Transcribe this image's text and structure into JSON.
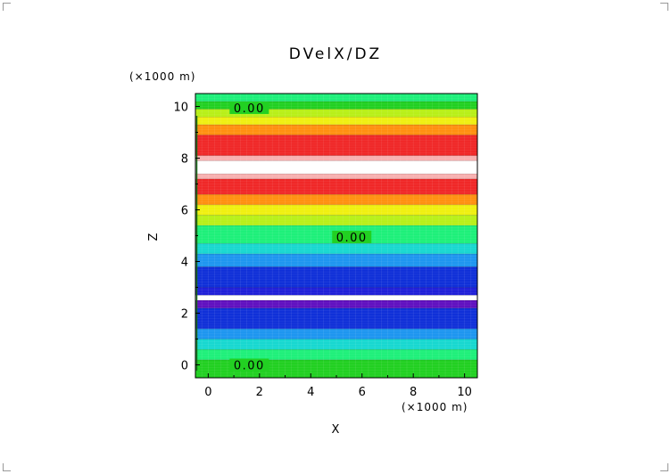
{
  "chart_data": {
    "type": "heatmap",
    "title": "DVelX/DZ",
    "xlabel": "X",
    "ylabel": "Z",
    "x_unit_label": "(×1000 m)",
    "y_unit_label": "(×1000 m)",
    "xlim": [
      -0.5,
      10.5
    ],
    "ylim": [
      -0.5,
      10.5
    ],
    "x_ticks": [
      "0",
      "2",
      "4",
      "6",
      "8",
      "10"
    ],
    "y_ticks": [
      "0",
      "2",
      "4",
      "6",
      "8",
      "10"
    ],
    "x_tick_values": [
      0,
      2,
      4,
      6,
      8,
      10
    ],
    "y_tick_values": [
      0,
      2,
      4,
      6,
      8,
      10
    ],
    "pattern": "horizontal bands, varying only with Z",
    "bands": [
      {
        "z0": -0.5,
        "z1": 0.2,
        "color": "#22d022"
      },
      {
        "z0": 0.2,
        "z1": 0.6,
        "color": "#1ef07a"
      },
      {
        "z0": 0.6,
        "z1": 1.0,
        "color": "#18d8d0"
      },
      {
        "z0": 1.0,
        "z1": 1.4,
        "color": "#1e96f0"
      },
      {
        "z0": 1.4,
        "z1": 2.2,
        "color": "#1030d8"
      },
      {
        "z0": 2.2,
        "z1": 2.5,
        "color": "#6010c0"
      },
      {
        "z0": 2.5,
        "z1": 2.7,
        "color": "#ffffff"
      },
      {
        "z0": 2.7,
        "z1": 3.0,
        "color": "#2020d8"
      },
      {
        "z0": 3.0,
        "z1": 3.8,
        "color": "#1030d8"
      },
      {
        "z0": 3.8,
        "z1": 4.3,
        "color": "#1e96f0"
      },
      {
        "z0": 4.3,
        "z1": 4.7,
        "color": "#18d8d0"
      },
      {
        "z0": 4.7,
        "z1": 5.4,
        "color": "#1ef07a"
      },
      {
        "z0": 5.4,
        "z1": 5.8,
        "color": "#b8f018"
      },
      {
        "z0": 5.8,
        "z1": 6.2,
        "color": "#f0f010"
      },
      {
        "z0": 6.2,
        "z1": 6.6,
        "color": "#ff9010"
      },
      {
        "z0": 6.6,
        "z1": 7.2,
        "color": "#f02828"
      },
      {
        "z0": 7.2,
        "z1": 7.4,
        "color": "#f8b0b0"
      },
      {
        "z0": 7.4,
        "z1": 7.9,
        "color": "#ffffff"
      },
      {
        "z0": 7.9,
        "z1": 8.1,
        "color": "#f8b0b0"
      },
      {
        "z0": 8.1,
        "z1": 8.9,
        "color": "#f02828"
      },
      {
        "z0": 8.9,
        "z1": 9.3,
        "color": "#ff9010"
      },
      {
        "z0": 9.3,
        "z1": 9.6,
        "color": "#f0f010"
      },
      {
        "z0": 9.6,
        "z1": 9.9,
        "color": "#b8f018"
      },
      {
        "z0": 9.9,
        "z1": 10.2,
        "color": "#22d022"
      },
      {
        "z0": 10.2,
        "z1": 10.5,
        "color": "#1ef07a"
      }
    ],
    "contour_labels": [
      {
        "text": "0.00",
        "x": 1.6,
        "z": 9.95
      },
      {
        "text": "0.00",
        "x": 5.6,
        "z": 4.95
      },
      {
        "text": "0.00",
        "x": 1.6,
        "z": 0.0
      }
    ],
    "grid": true,
    "legend": "none"
  }
}
